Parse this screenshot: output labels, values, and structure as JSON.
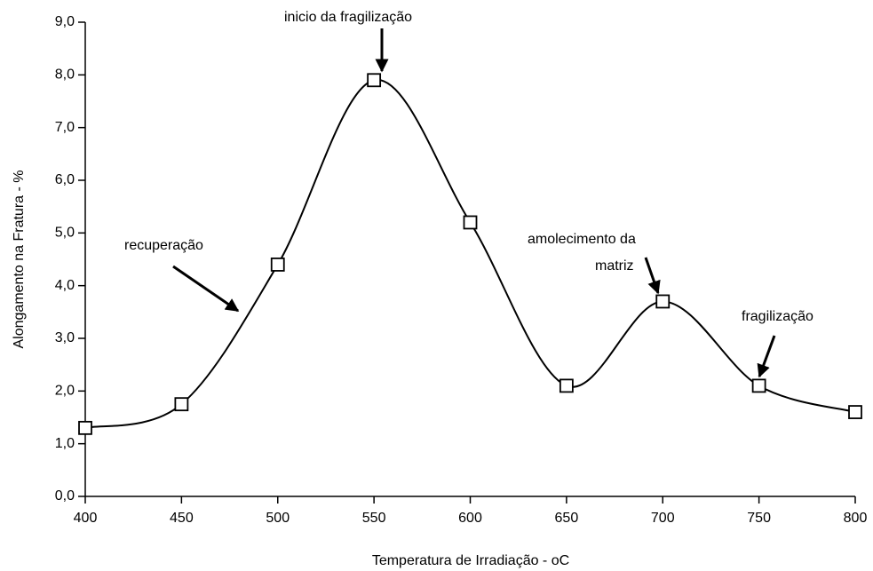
{
  "chart_data": {
    "type": "line",
    "xlabel": "Temperatura de Irradiação - oC",
    "ylabel": "Alongamento na Fratura - %",
    "x": [
      400,
      450,
      500,
      550,
      600,
      650,
      700,
      750,
      800
    ],
    "values": [
      1.3,
      1.75,
      4.4,
      7.9,
      5.2,
      2.1,
      3.7,
      2.1,
      1.6
    ],
    "color": "#000000",
    "marker": "square",
    "xlim": [
      400,
      800
    ],
    "xticks": [
      400,
      450,
      500,
      550,
      600,
      650,
      700,
      750,
      800
    ],
    "ylim": [
      0,
      9
    ],
    "yticks": [
      {
        "value": 0,
        "label": "0,0"
      },
      {
        "value": 1,
        "label": "1,0"
      },
      {
        "value": 2,
        "label": "2,0"
      },
      {
        "value": 3,
        "label": "3,0"
      },
      {
        "value": 4,
        "label": "4,0"
      },
      {
        "value": 5,
        "label": "5,0"
      },
      {
        "value": 6,
        "label": "6,0"
      },
      {
        "value": 7,
        "label": "7,0"
      },
      {
        "value": 8,
        "label": "8,0"
      },
      {
        "value": 9,
        "label": "9,0"
      }
    ],
    "grid": false,
    "annotations": [
      "inicio da fragilização",
      "recuperação",
      "amolecimento da",
      "matriz",
      "fragilização"
    ]
  }
}
